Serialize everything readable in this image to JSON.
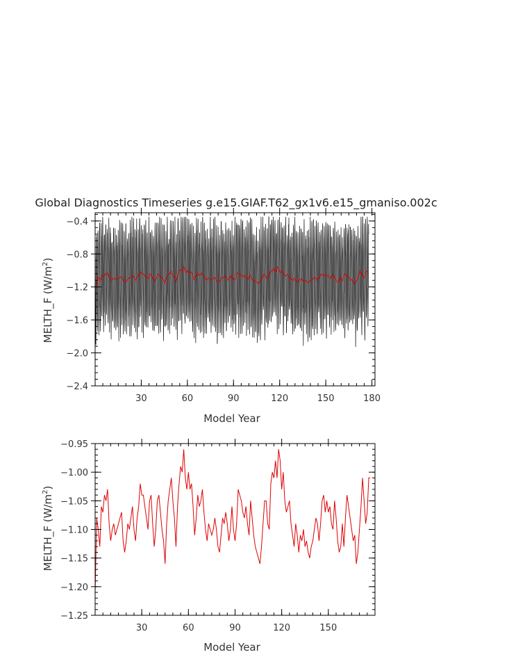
{
  "title": "Global Diagnostics Timeseries g.e15.GIAF.T62_gx1v6.e15_gmaniso.002c",
  "chart_data": [
    {
      "type": "line",
      "panel": "monthly",
      "xlabel": "Model Year",
      "ylabel": "MELTH_F (W/m",
      "ylabel_sup": "2",
      "ylabel_end": ")",
      "xlim": [
        0,
        182
      ],
      "ylim": [
        -2.4,
        -0.3
      ],
      "xticks": [
        30,
        60,
        90,
        120,
        150,
        180
      ],
      "yticks": [
        -2.4,
        -2.0,
        -1.6,
        -1.2,
        -0.8,
        -0.4
      ],
      "ytick_labels": [
        "−2.4",
        "−2.0",
        "−1.6",
        "−1.2",
        "−0.8",
        "−0.4"
      ],
      "series": [
        {
          "kind": "monthly",
          "color": "#000000",
          "months_per_year": 12,
          "mean": -1.09,
          "amplitude": 0.62
        },
        {
          "kind": "annual_mean",
          "color": "#dd0000",
          "source": "annual_mean"
        }
      ]
    },
    {
      "type": "line",
      "panel": "annual",
      "xlabel": "Model Year",
      "ylabel": "MELTH_F (W/m",
      "ylabel_sup": "2",
      "ylabel_end": ")",
      "xlim": [
        0,
        180
      ],
      "ylim": [
        -1.25,
        -0.95
      ],
      "xticks": [
        30,
        60,
        90,
        120,
        150
      ],
      "yticks": [
        -1.25,
        -1.2,
        -1.15,
        -1.1,
        -1.05,
        -1.0,
        -0.95
      ],
      "ytick_labels": [
        "−1.25",
        "−1.20",
        "−1.15",
        "−1.10",
        "−1.05",
        "−1.00",
        "−0.95"
      ],
      "series": [
        {
          "kind": "annual_mean",
          "color": "#dd0000",
          "source": "annual_mean"
        }
      ]
    }
  ],
  "annual_mean": [
    -1.21,
    -1.08,
    -1.1,
    -1.13,
    -1.06,
    -1.07,
    -1.04,
    -1.05,
    -1.03,
    -1.09,
    -1.12,
    -1.1,
    -1.09,
    -1.11,
    -1.1,
    -1.09,
    -1.08,
    -1.07,
    -1.12,
    -1.14,
    -1.12,
    -1.09,
    -1.1,
    -1.08,
    -1.06,
    -1.1,
    -1.12,
    -1.08,
    -1.06,
    -1.02,
    -1.04,
    -1.04,
    -1.06,
    -1.08,
    -1.1,
    -1.05,
    -1.04,
    -1.09,
    -1.13,
    -1.1,
    -1.05,
    -1.04,
    -1.07,
    -1.1,
    -1.12,
    -1.16,
    -1.09,
    -1.05,
    -1.03,
    -1.01,
    -1.05,
    -1.08,
    -1.13,
    -1.06,
    -1.02,
    -0.99,
    -1.0,
    -0.96,
    -1.01,
    -1.03,
    -1.0,
    -1.03,
    -1.02,
    -1.06,
    -1.11,
    -1.08,
    -1.04,
    -1.06,
    -1.05,
    -1.03,
    -1.07,
    -1.1,
    -1.12,
    -1.09,
    -1.1,
    -1.11,
    -1.1,
    -1.08,
    -1.1,
    -1.13,
    -1.14,
    -1.11,
    -1.08,
    -1.09,
    -1.07,
    -1.09,
    -1.12,
    -1.1,
    -1.06,
    -1.1,
    -1.12,
    -1.09,
    -1.03,
    -1.04,
    -1.05,
    -1.07,
    -1.08,
    -1.06,
    -1.09,
    -1.11,
    -1.05,
    -1.08,
    -1.11,
    -1.13,
    -1.14,
    -1.15,
    -1.16,
    -1.13,
    -1.09,
    -1.05,
    -1.05,
    -1.09,
    -1.1,
    -1.02,
    -1.0,
    -1.01,
    -0.98,
    -1.01,
    -0.96,
    -0.98,
    -1.03,
    -1.0,
    -1.05,
    -1.07,
    -1.06,
    -1.05,
    -1.09,
    -1.11,
    -1.13,
    -1.09,
    -1.11,
    -1.14,
    -1.11,
    -1.12,
    -1.1,
    -1.13,
    -1.12,
    -1.14,
    -1.15,
    -1.13,
    -1.12,
    -1.1,
    -1.08,
    -1.09,
    -1.12,
    -1.09,
    -1.05,
    -1.04,
    -1.07,
    -1.05,
    -1.07,
    -1.06,
    -1.09,
    -1.1,
    -1.05,
    -1.08,
    -1.12,
    -1.14,
    -1.13,
    -1.09,
    -1.13,
    -1.08,
    -1.04,
    -1.06,
    -1.08,
    -1.1,
    -1.12,
    -1.11,
    -1.16,
    -1.14,
    -1.1,
    -1.06,
    -1.01,
    -1.05,
    -1.09,
    -1.07,
    -1.01,
    -1.01
  ]
}
